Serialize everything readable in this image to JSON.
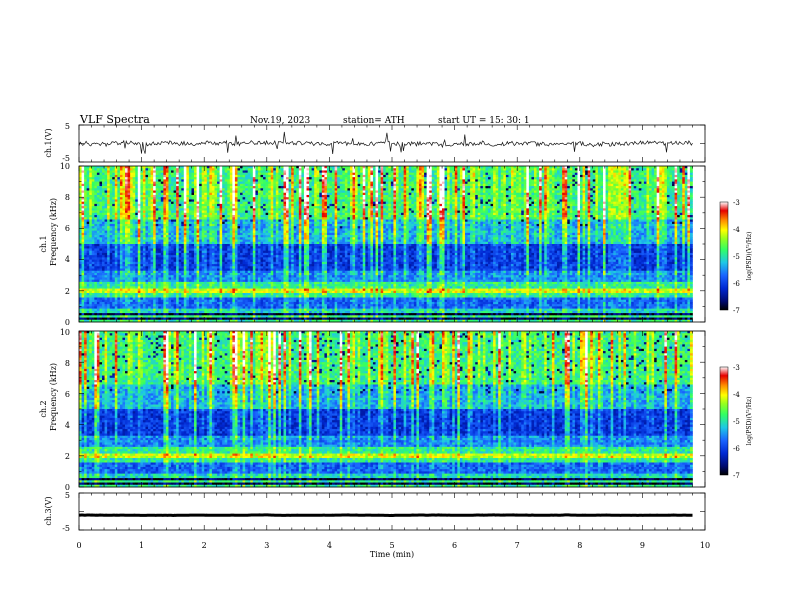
{
  "header": {
    "title": "VLF  Spectra",
    "date": "Nov.19, 2023",
    "station": "station= ATH",
    "start": "start  UT  =    15: 30: 1"
  },
  "panels": {
    "ch1_waveform": {
      "ylabel": "ch.1(V)"
    },
    "ch1_spectrogram": {
      "ylabel_line1": "ch.1",
      "ylabel_line2": "Frequency (kHz)"
    },
    "ch2_spectrogram": {
      "ylabel_line1": "ch.2",
      "ylabel_line2": "Frequency (kHz)"
    },
    "ch3_waveform": {
      "ylabel": "ch.3(V)"
    }
  },
  "colorbar": {
    "label": "log(PSD)(V²/Hz)",
    "ticks": [
      "-3",
      "-4",
      "-5",
      "-6",
      "-7"
    ]
  },
  "colors": {
    "scale": [
      "#000000",
      "#000a6e",
      "#0028d2",
      "#1a64ff",
      "#1ec8e6",
      "#32ff64",
      "#96ff1e",
      "#ffff00",
      "#ff8c00",
      "#e60000",
      "#ffffff"
    ]
  },
  "chart_data": [
    {
      "type": "line",
      "name": "ch1-waveform",
      "ylabel": "ch.1(V)",
      "xlim": [
        0,
        10
      ],
      "ylim": [
        -5,
        5
      ],
      "yticks": [
        "5",
        "-5"
      ],
      "x_extent": [
        0,
        9.8
      ],
      "approx_level": 0,
      "approx_amplitude": 1
    },
    {
      "type": "heatmap",
      "name": "ch1-spectrogram",
      "xlim": [
        0,
        10
      ],
      "ylim": [
        0,
        10
      ],
      "yticks": [
        "0",
        "2",
        "4",
        "6",
        "8",
        "10"
      ],
      "zlim": [
        -7,
        -3
      ],
      "x_extent": [
        0,
        9.8
      ],
      "features": {
        "line_at_2kHz": true,
        "low_band_below_1kHz": true,
        "vertical_spherics": true
      }
    },
    {
      "type": "heatmap",
      "name": "ch2-spectrogram",
      "xlim": [
        0,
        10
      ],
      "ylim": [
        0,
        10
      ],
      "yticks": [
        "0",
        "2",
        "4",
        "6",
        "8",
        "10"
      ],
      "zlim": [
        -7,
        -3
      ],
      "x_extent": [
        0,
        9.8
      ],
      "features": {
        "line_at_2kHz": true,
        "low_band_below_1kHz": true,
        "vertical_spherics": true
      }
    },
    {
      "type": "line",
      "name": "ch3-waveform",
      "ylabel": "ch.3(V)",
      "xlim": [
        0,
        10
      ],
      "ylim": [
        -5,
        5
      ],
      "yticks": [
        "5",
        "-5"
      ],
      "x_extent": [
        0,
        9.8
      ],
      "approx_level": -1,
      "approx_amplitude": 0.1
    }
  ],
  "xaxis": {
    "label": "Time  (min)",
    "ticks": [
      "0",
      "1",
      "2",
      "3",
      "4",
      "5",
      "6",
      "7",
      "8",
      "9",
      "10"
    ]
  }
}
